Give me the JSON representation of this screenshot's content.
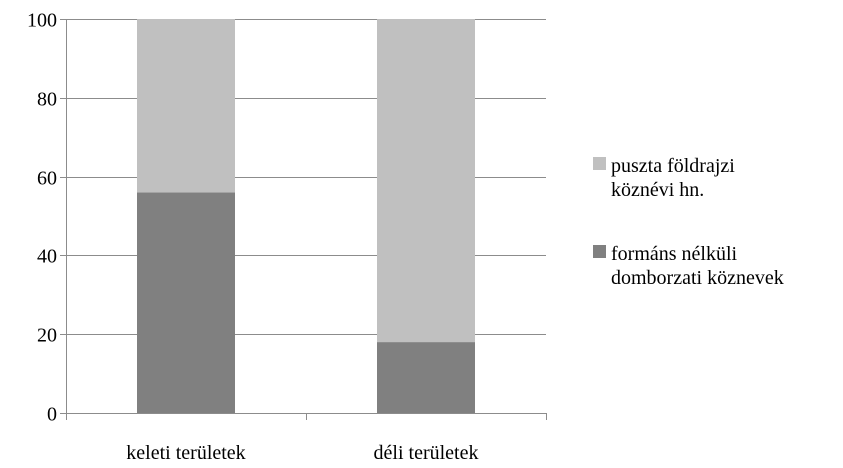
{
  "chart_data": {
    "type": "bar",
    "stacked": true,
    "categories": [
      "keleti területek",
      "déli területek"
    ],
    "series": [
      {
        "name": "formáns nélküli domborzatiköznevek",
        "legend_lines": [
          "formáns nélküli",
          "domborzati köznevek"
        ],
        "values": [
          56,
          18
        ],
        "color": "#808080"
      },
      {
        "name": "puszta földrajzi köznévi hn.",
        "legend_lines": [
          "puszta földrajzi",
          "köznévi hn."
        ],
        "values": [
          44,
          82
        ],
        "color": "#c0c0c0"
      }
    ],
    "legend_order": [
      1,
      0
    ],
    "yticks": [
      0,
      20,
      40,
      60,
      80,
      100
    ],
    "ylim": [
      0,
      100
    ],
    "grid": true,
    "legend_position": "right",
    "title": "",
    "xlabel": "",
    "ylabel": ""
  }
}
